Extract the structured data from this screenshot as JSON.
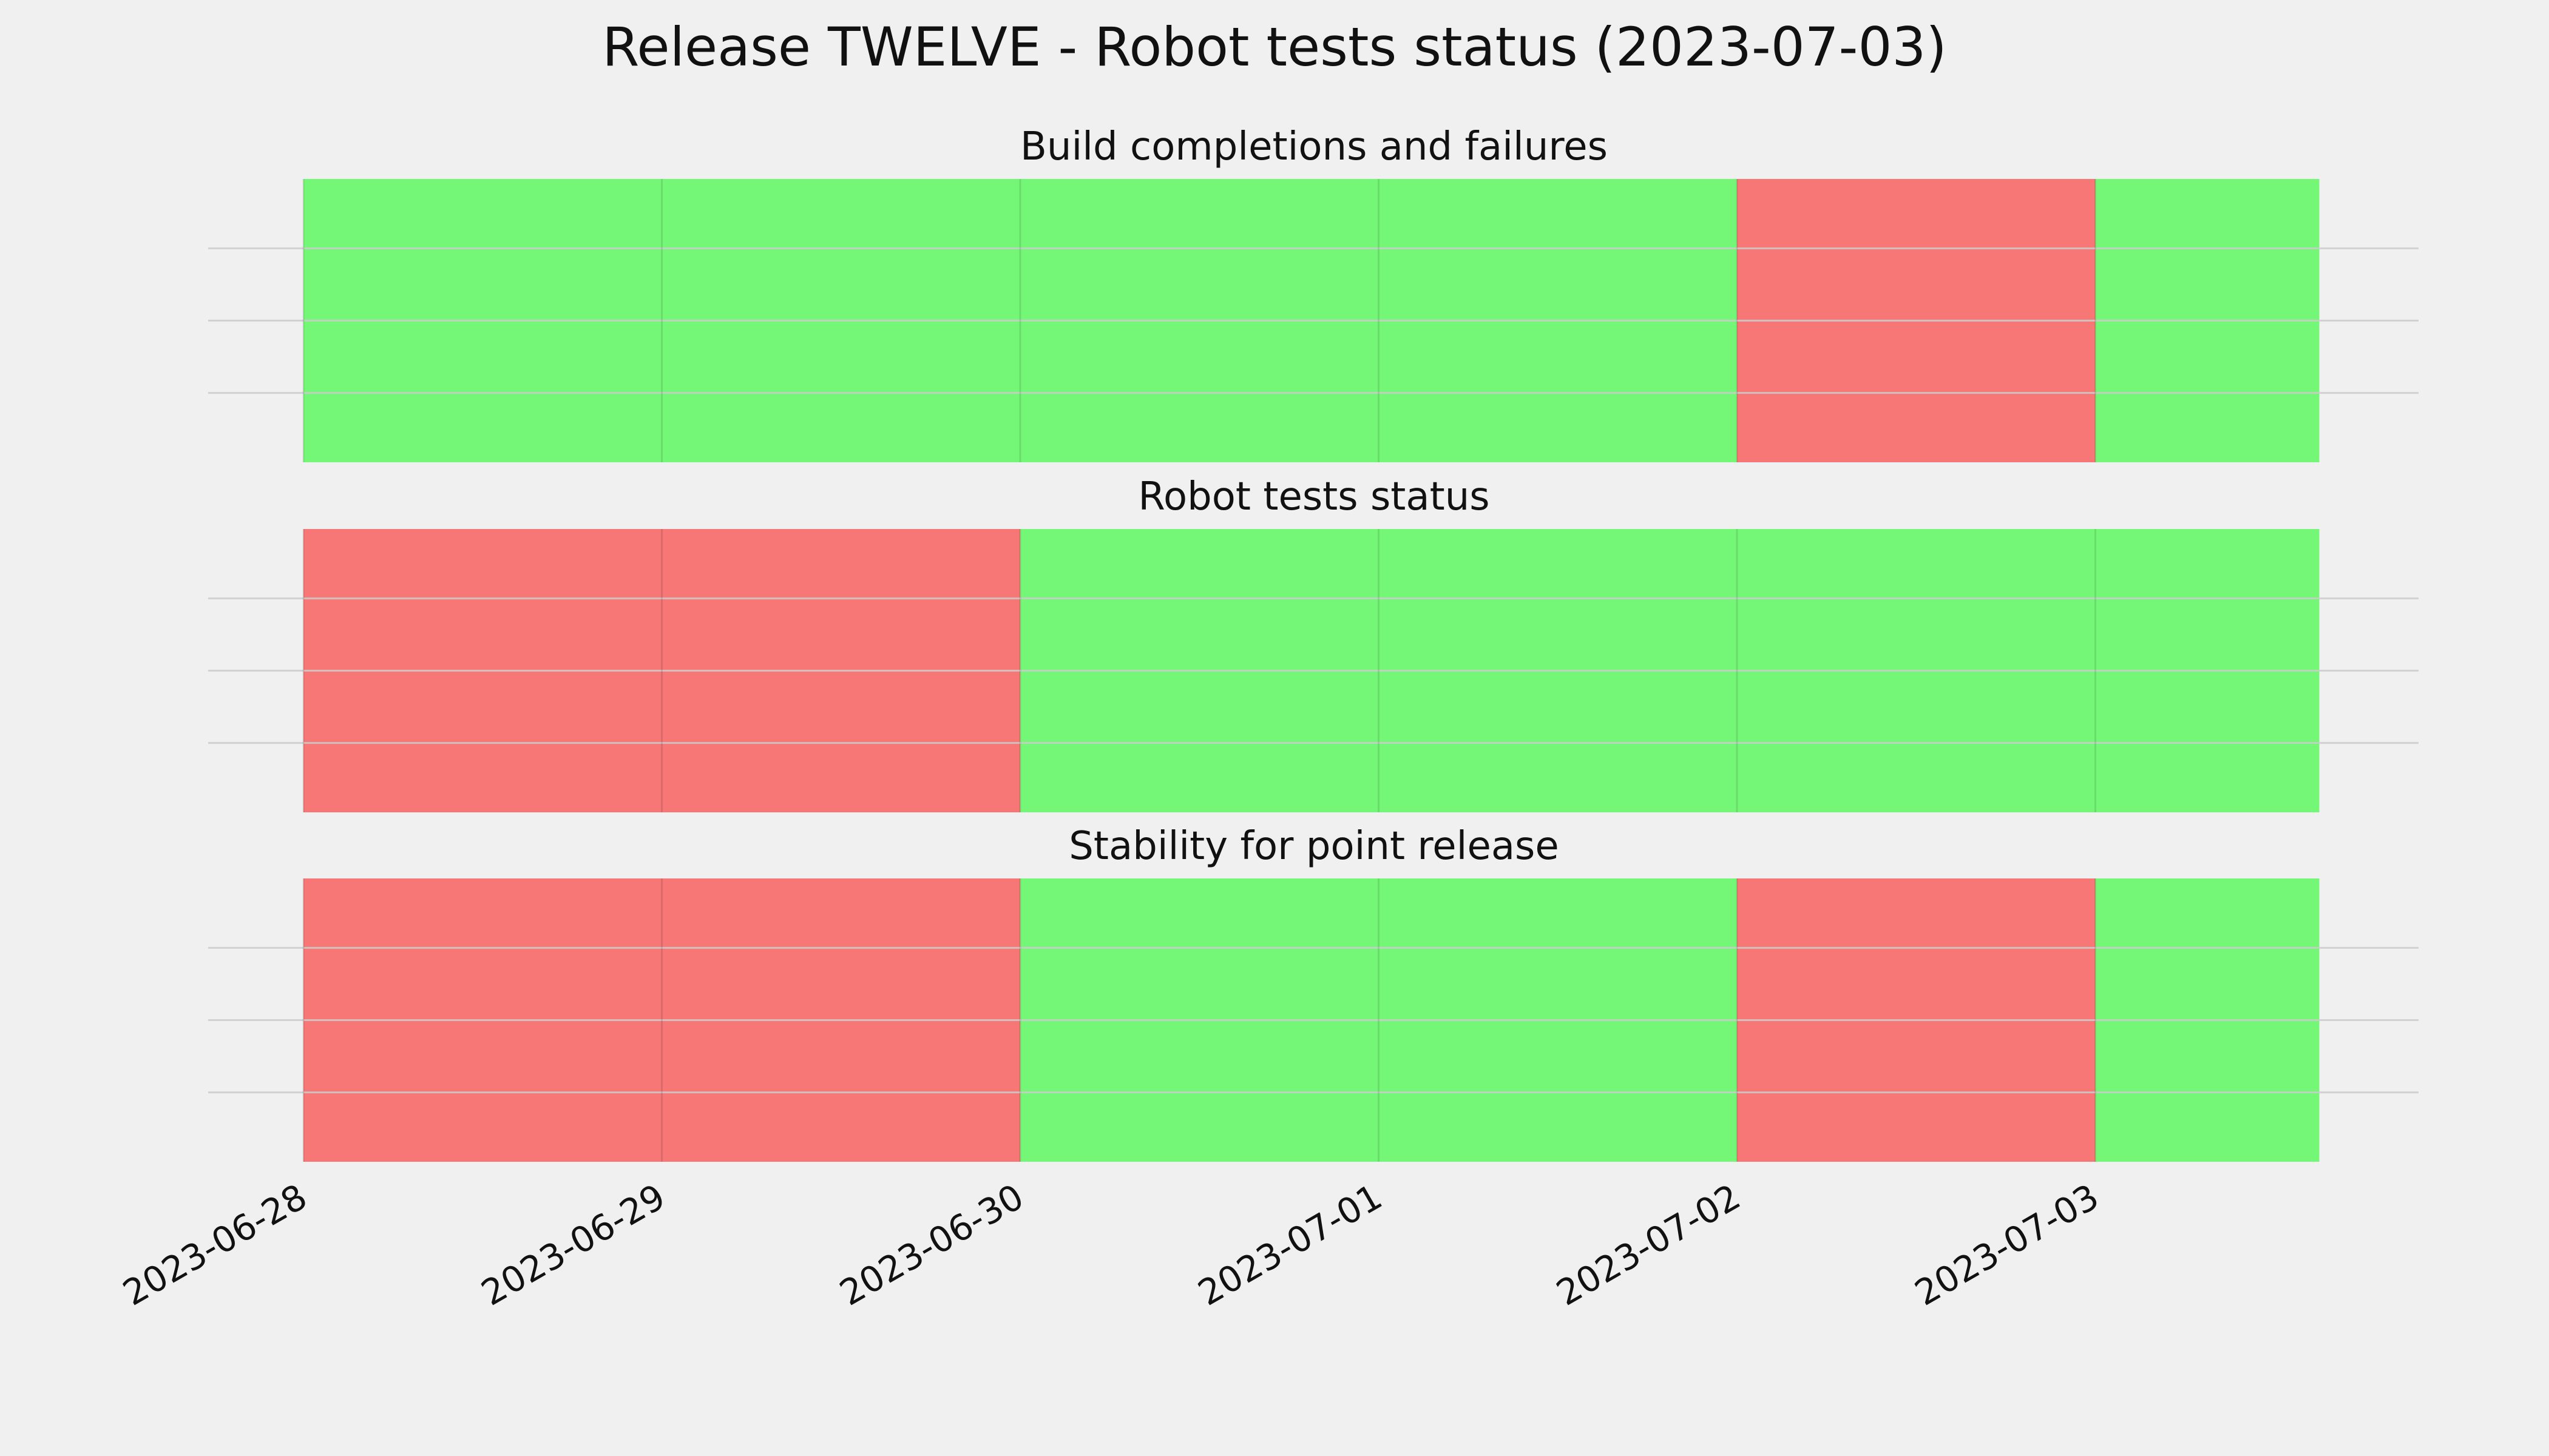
{
  "chart_data": {
    "type": "heatmap",
    "title": "Release TWELVE - Robot tests status (2023-07-03)",
    "x_tick_labels": [
      "2023-06-28",
      "2023-06-29",
      "2023-06-30",
      "2023-07-01",
      "2023-07-02",
      "2023-07-03"
    ],
    "x_range": [
      "2023-06-28",
      "2023-07-03T15:00"
    ],
    "grid": true,
    "colors": {
      "pass": "#74f677",
      "fail": "#f67776",
      "background": "#f0f0f0",
      "grid": "#cbcbcb",
      "text": "#111111"
    },
    "panels": [
      {
        "title": "Build completions and failures",
        "days": [
          {
            "date": "2023-06-28",
            "status": "pass"
          },
          {
            "date": "2023-06-29",
            "status": "pass"
          },
          {
            "date": "2023-06-30",
            "status": "pass"
          },
          {
            "date": "2023-07-01",
            "status": "pass"
          },
          {
            "date": "2023-07-02",
            "status": "fail"
          },
          {
            "date": "2023-07-03",
            "status": "pass"
          }
        ]
      },
      {
        "title": "Robot tests status",
        "days": [
          {
            "date": "2023-06-28",
            "status": "fail"
          },
          {
            "date": "2023-06-29",
            "status": "fail"
          },
          {
            "date": "2023-06-30",
            "status": "pass"
          },
          {
            "date": "2023-07-01",
            "status": "pass"
          },
          {
            "date": "2023-07-02",
            "status": "pass"
          },
          {
            "date": "2023-07-03",
            "status": "pass"
          }
        ]
      },
      {
        "title": "Stability for point release",
        "days": [
          {
            "date": "2023-06-28",
            "status": "fail"
          },
          {
            "date": "2023-06-29",
            "status": "fail"
          },
          {
            "date": "2023-06-30",
            "status": "pass"
          },
          {
            "date": "2023-07-01",
            "status": "pass"
          },
          {
            "date": "2023-07-02",
            "status": "fail"
          },
          {
            "date": "2023-07-03",
            "status": "pass"
          }
        ]
      }
    ]
  }
}
